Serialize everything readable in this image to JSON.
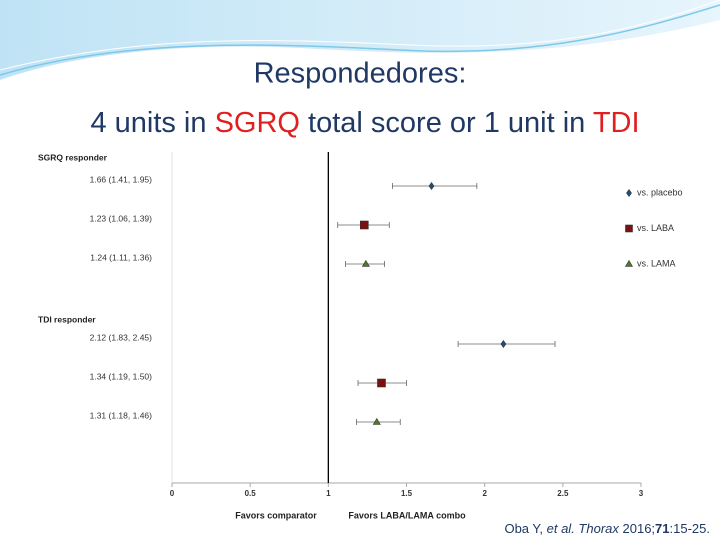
{
  "chart_data": {
    "type": "forest",
    "title_line1": "Respondedores:",
    "title_line2": [
      {
        "text": "4 units in ",
        "color": "#1f3864"
      },
      {
        "text": "SGRQ",
        "color": "#e02020"
      },
      {
        "text": " total score or 1 unit in ",
        "color": "#1f3864"
      },
      {
        "text": "TDI",
        "color": "#e02020"
      }
    ],
    "groups": [
      "SGRQ responder",
      "TDI responder"
    ],
    "series": [
      {
        "name": "vs. placebo",
        "color": "#1f4e79",
        "marker": "diamond",
        "values": [
          1.66,
          2.12
        ],
        "lower": [
          1.41,
          1.83
        ],
        "upper": [
          1.95,
          2.45
        ],
        "value_labels": [
          "1.66 (1.41, 1.95)",
          "2.12 (1.83, 2.45)"
        ]
      },
      {
        "name": "vs. LABA",
        "color": "#7b1010",
        "marker": "square",
        "values": [
          1.23,
          1.34
        ],
        "lower": [
          1.06,
          1.19
        ],
        "upper": [
          1.39,
          1.5
        ],
        "value_labels": [
          "1.23 (1.06, 1.39)",
          "1.34 (1.19, 1.50)"
        ]
      },
      {
        "name": "vs. LAMA",
        "color": "#4f7a28",
        "marker": "triangle",
        "values": [
          1.24,
          1.31
        ],
        "lower": [
          1.11,
          1.18
        ],
        "upper": [
          1.36,
          1.46
        ],
        "value_labels": [
          "1.24 (1.11, 1.36)",
          "1.31 (1.18, 1.46)"
        ]
      }
    ],
    "xlim": [
      0,
      3
    ],
    "xticks": [
      0,
      0.5,
      1,
      1.5,
      2,
      2.5,
      3
    ],
    "reference": 1,
    "xlabel_left": "Favors comparator",
    "xlabel_right": "Favors LABA/LAMA combo",
    "citation": [
      {
        "text": "Oba Y, ",
        "style": "normal"
      },
      {
        "text": "et al. Thorax",
        "style": "italic"
      },
      {
        "text": " 2016;",
        "style": "normal"
      },
      {
        "text": "71",
        "style": "bold"
      },
      {
        "text": ":15-25.",
        "style": "normal"
      }
    ]
  }
}
